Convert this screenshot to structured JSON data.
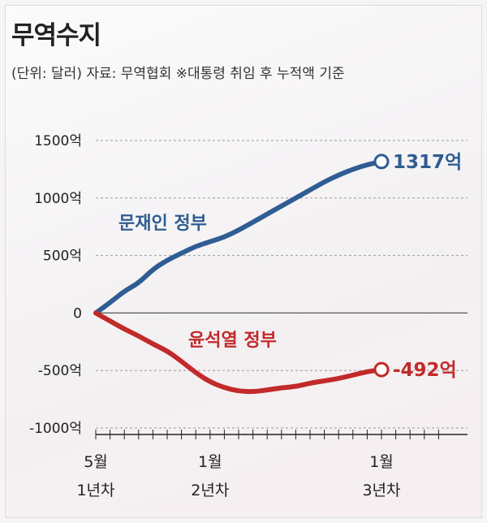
{
  "header": {
    "title": "무역수지",
    "subtitle": "(단위: 달러) 자료: 무역협회  ※대통령 취임 후 누적액 기준"
  },
  "chart_data": {
    "type": "line",
    "title": "무역수지",
    "subtitle": "(단위: 달러) 자료: 무역협회  ※대통령 취임 후 누적액 기준",
    "xlabel": "",
    "ylabel": "",
    "ylim": [
      -1000,
      1500
    ],
    "yticks": [
      1500,
      1000,
      500,
      0,
      -500,
      -1000
    ],
    "ytick_labels": [
      "1500억",
      "1000억",
      "500억",
      "0",
      "-500억",
      "-1000억"
    ],
    "xlim": [
      0,
      24
    ],
    "xticks": [
      0,
      8,
      20
    ],
    "xtick_labels": [
      [
        "5월",
        "1년차"
      ],
      [
        "1월",
        "2년차"
      ],
      [
        "1월",
        "3년차"
      ]
    ],
    "grid": true,
    "series": [
      {
        "name": "문재인 정부",
        "color": "#2f5d93",
        "end_label": "1317억",
        "x": [
          0,
          1,
          2,
          3,
          4,
          5,
          6,
          7,
          8,
          9,
          10,
          11,
          12,
          13,
          14,
          15,
          16,
          17,
          18,
          19,
          20
        ],
        "y": [
          0,
          90,
          190,
          260,
          380,
          460,
          520,
          580,
          620,
          660,
          720,
          790,
          860,
          930,
          1000,
          1070,
          1140,
          1200,
          1250,
          1290,
          1317
        ]
      },
      {
        "name": "윤석열 정부",
        "color": "#c22a2a",
        "end_label": "-492억",
        "x": [
          0,
          1,
          2,
          3,
          4,
          5,
          6,
          7,
          8,
          9,
          10,
          11,
          12,
          13,
          14,
          15,
          16,
          17,
          18,
          19,
          20
        ],
        "y": [
          0,
          -70,
          -140,
          -200,
          -270,
          -330,
          -420,
          -520,
          -600,
          -650,
          -680,
          -685,
          -670,
          -650,
          -640,
          -610,
          -590,
          -570,
          -540,
          -510,
          -492
        ]
      }
    ]
  }
}
